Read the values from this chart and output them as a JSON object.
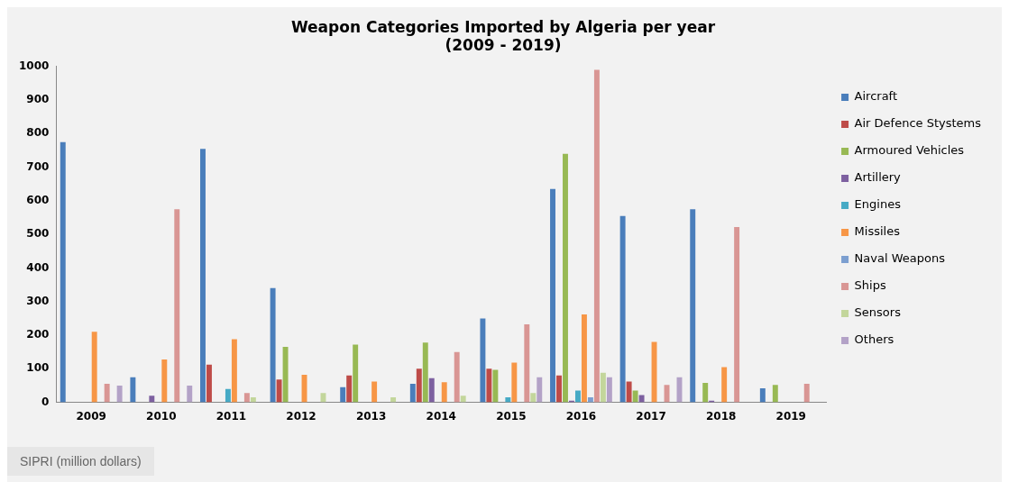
{
  "chart_data": {
    "type": "bar",
    "title": "Weapon Categories Imported by Algeria per year\n(2009 - 2019)",
    "categories": [
      "2009",
      "2010",
      "2011",
      "2012",
      "2013",
      "2014",
      "2015",
      "2016",
      "2017",
      "2018",
      "2019"
    ],
    "series": [
      {
        "name": "Aircraft",
        "color": "#4a7ebb",
        "values": [
          775,
          75,
          755,
          340,
          45,
          55,
          250,
          635,
          555,
          575,
          42
        ]
      },
      {
        "name": "Air Defence Stystems",
        "color": "#be4b48",
        "values": [
          0,
          0,
          112,
          68,
          80,
          100,
          100,
          80,
          62,
          0,
          0
        ]
      },
      {
        "name": "Armoured Vehicles",
        "color": "#98b954",
        "values": [
          0,
          0,
          0,
          165,
          172,
          178,
          97,
          740,
          35,
          58,
          52
        ]
      },
      {
        "name": "Artillery",
        "color": "#7d60a0",
        "values": [
          0,
          20,
          0,
          0,
          0,
          72,
          0,
          5,
          22,
          5,
          0
        ]
      },
      {
        "name": "Engines",
        "color": "#46aac5",
        "values": [
          0,
          0,
          40,
          0,
          0,
          0,
          15,
          35,
          0,
          0,
          0
        ]
      },
      {
        "name": "Missiles",
        "color": "#f79646",
        "values": [
          210,
          128,
          188,
          82,
          62,
          60,
          118,
          262,
          180,
          105,
          0
        ]
      },
      {
        "name": "Naval Weapons",
        "color": "#7c9fd0",
        "values": [
          0,
          0,
          0,
          0,
          0,
          0,
          0,
          15,
          0,
          0,
          0
        ]
      },
      {
        "name": "Ships",
        "color": "#d99694",
        "values": [
          55,
          575,
          28,
          0,
          0,
          150,
          232,
          990,
          52,
          522,
          55
        ]
      },
      {
        "name": "Sensors",
        "color": "#c3d69b",
        "values": [
          0,
          0,
          15,
          28,
          15,
          20,
          28,
          88,
          0,
          0,
          0
        ]
      },
      {
        "name": "Others",
        "color": "#b3a2c7",
        "values": [
          50,
          50,
          0,
          0,
          0,
          0,
          75,
          75,
          75,
          0,
          0
        ]
      }
    ],
    "ylim": [
      0,
      1000
    ],
    "yticks": [
      0,
      100,
      200,
      300,
      400,
      500,
      600,
      700,
      800,
      900,
      1000
    ],
    "grid": false,
    "legend": "right",
    "annotations": [
      "SIPRI (million dollars)"
    ]
  }
}
